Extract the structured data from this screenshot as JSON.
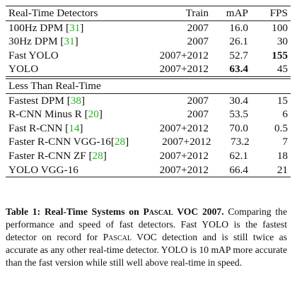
{
  "table": {
    "headers": {
      "name": "Real-Time Detectors",
      "train": "Train",
      "map": "mAP",
      "fps": "FPS"
    },
    "realtime_rows": [
      {
        "name": "100Hz DPM [",
        "cite": "31",
        "end": "]",
        "train": "2007",
        "map": "16.0",
        "fps": "100"
      },
      {
        "name": "30Hz DPM [",
        "cite": "31",
        "end": "]",
        "train": "2007",
        "map": "26.1",
        "fps": "30"
      },
      {
        "name": "Fast YOLO",
        "cite": "",
        "end": "",
        "train": "2007+2012",
        "map": "52.7",
        "fps": "155"
      },
      {
        "name": "YOLO",
        "cite": "",
        "end": "",
        "train": "2007+2012",
        "map": "63.4",
        "fps": "45"
      }
    ],
    "section2_title": "Less Than Real-Time",
    "slow_rows": [
      {
        "name": "Fastest DPM [",
        "cite": "38",
        "end": "]",
        "train": "2007",
        "map": "30.4",
        "fps": "15"
      },
      {
        "name": "R-CNN Minus R [",
        "cite": "20",
        "end": "]",
        "train": "2007",
        "map": "53.5",
        "fps": "6"
      },
      {
        "name": "Fast R-CNN [",
        "cite": "14",
        "end": "]",
        "train": "2007+2012",
        "map": "70.0",
        "fps": "0.5"
      },
      {
        "name": "Faster R-CNN VGG-16[",
        "cite": "28",
        "end": "]",
        "train": "2007+2012",
        "map": "73.2",
        "fps": "7"
      },
      {
        "name": "Faster R-CNN ZF [",
        "cite": "28",
        "end": "]",
        "train": "2007+2012",
        "map": "62.1",
        "fps": "18"
      },
      {
        "name": "YOLO VGG-16",
        "cite": "",
        "end": "",
        "train": "2007+2012",
        "map": "66.4",
        "fps": "21"
      }
    ]
  },
  "caption": {
    "label": "Table 1:",
    "title_a": "Real-Time Systems on ",
    "title_sc": "Pascal",
    "title_b": " VOC 2007.",
    "body_a": " Comparing the performance and speed of fast detectors. Fast YOLO is the fastest detector on record for ",
    "body_sc": "Pascal",
    "body_b": " VOC detection and is still twice as accurate as any other real-time detector. YOLO is 10 mAP more accurate than the fast version while still well above real-time in speed."
  }
}
